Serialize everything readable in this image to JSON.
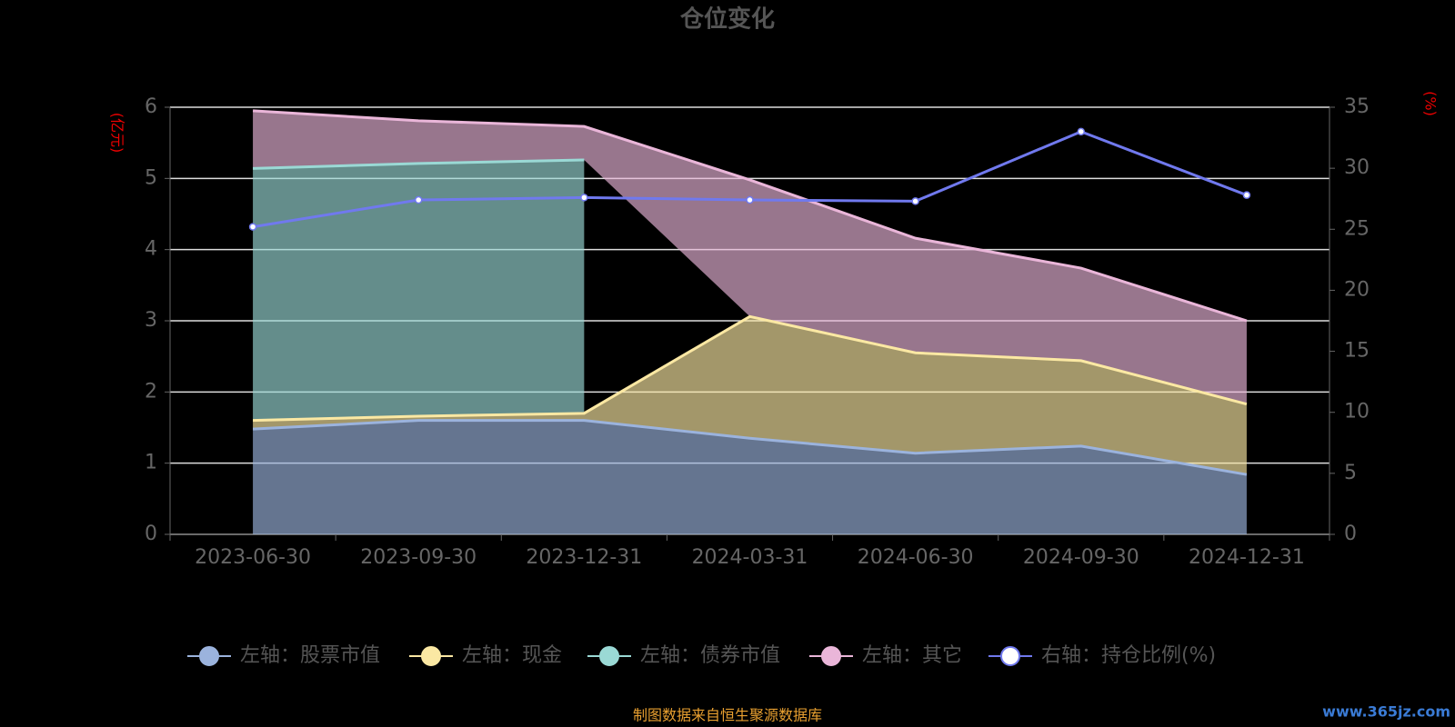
{
  "chart_data": {
    "type": "stacked-area-line",
    "title": "仓位变化",
    "y_axis_label": "(亿元)",
    "y2_axis_label": "(%)",
    "categories": [
      "2023-06-30",
      "2023-09-30",
      "2023-12-31",
      "2024-03-31",
      "2024-06-30",
      "2024-09-30",
      "2024-12-31"
    ],
    "series": [
      {
        "name": "左轴：股票市值",
        "color": "#9bb3dd",
        "values": [
          1.48,
          1.6,
          1.6,
          1.35,
          1.14,
          1.24,
          0.84
        ]
      },
      {
        "name": "左轴：现金",
        "color": "#fbe8a3",
        "values": [
          0.12,
          0.06,
          0.1,
          1.71,
          1.41,
          1.2,
          0.99
        ]
      },
      {
        "name": "左轴：债券市值",
        "color": "#9ad9d5",
        "values": [
          3.54,
          3.55,
          3.56,
          null,
          null,
          null,
          null
        ]
      },
      {
        "name": "左轴：其它",
        "color": "#eab6d9",
        "values": [
          0.81,
          0.6,
          0.47,
          1.92,
          1.61,
          1.3,
          1.17
        ]
      },
      {
        "name": "右轴：持仓比例(%)",
        "color": "#7079ee",
        "axis": "y2",
        "values": [
          25.2,
          27.4,
          27.6,
          27.4,
          27.3,
          33.0,
          27.8
        ]
      }
    ],
    "ylim": [
      0,
      6
    ],
    "yticks": [
      0,
      1,
      2,
      3,
      4,
      5,
      6
    ],
    "y2lim": [
      0,
      35
    ],
    "y2ticks": [
      0,
      5,
      10,
      15,
      20,
      25,
      30,
      35
    ],
    "grid": true,
    "legend": "bottom",
    "footer": "制图数据来自恒生聚源数据库",
    "watermark": "www.365jz.com"
  }
}
